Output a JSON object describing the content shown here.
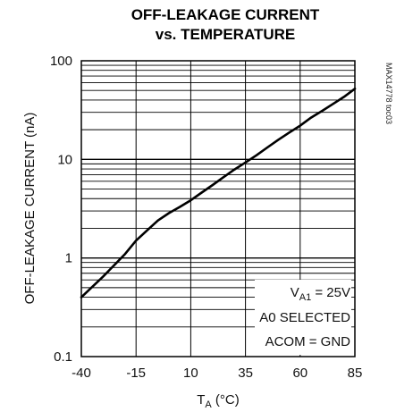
{
  "chart_data": {
    "type": "line",
    "title_line1": "OFF-LEAKAGE CURRENT",
    "title_line2": "vs. TEMPERATURE",
    "xlabel_main": "T",
    "xlabel_sub": "A",
    "xlabel_unit": " (°C)",
    "ylabel": "OFF-LEAKAGE CURRENT (nA)",
    "x_scale": "linear",
    "y_scale": "log",
    "xlim": [
      -40,
      85
    ],
    "ylim": [
      0.1,
      100
    ],
    "x_ticks": [
      -40,
      -15,
      10,
      35,
      60,
      85
    ],
    "y_ticks": [
      0.1,
      1,
      10,
      100
    ],
    "y_tick_labels": [
      "0.1",
      "1",
      "10",
      "100"
    ],
    "grid": true,
    "series": [
      {
        "x": [
          -40,
          -30,
          -20,
          -15,
          -10,
          -5,
          0,
          5,
          10,
          15,
          20,
          25,
          30,
          35,
          40,
          45,
          50,
          55,
          60,
          65,
          70,
          75,
          80,
          85
        ],
        "y": [
          0.4,
          0.65,
          1.1,
          1.5,
          1.9,
          2.4,
          2.85,
          3.3,
          3.85,
          4.6,
          5.5,
          6.6,
          7.9,
          9.3,
          11,
          13.2,
          15.8,
          18.7,
          22,
          26.5,
          31,
          36.5,
          43,
          52
        ]
      }
    ],
    "annotation": {
      "line1_main": "V",
      "line1_sub": "A1",
      "line1_rest": " = 25V",
      "line2": "A0 SELECTED",
      "line3": "ACOM = GND"
    },
    "part_number": "MAX14778 toc03"
  }
}
